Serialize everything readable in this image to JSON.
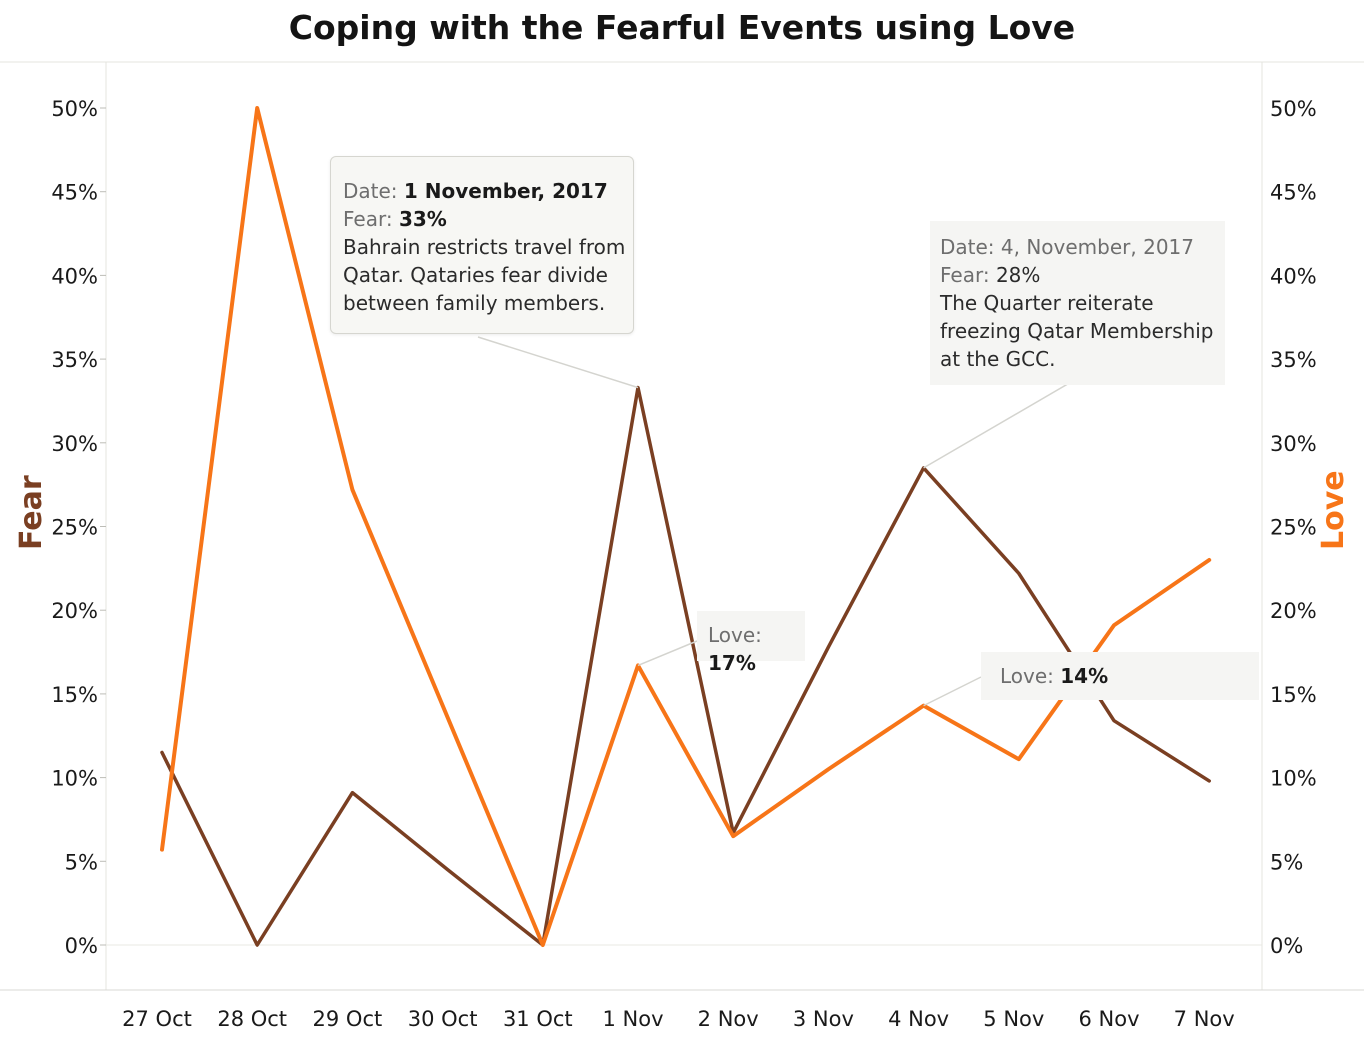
{
  "title": "Coping with the Fearful Events using Love",
  "colors": {
    "fear": "#7a3f22",
    "love": "#f77518",
    "grid": "#d9d9d4",
    "text": "#1a1a1a"
  },
  "chart_data": {
    "type": "line",
    "title": "Coping with the Fearful Events using Love",
    "categories": [
      "27 Oct",
      "28 Oct",
      "29 Oct",
      "30 Oct",
      "31 Oct",
      "1 Nov",
      "2 Nov",
      "3 Nov",
      "4 Nov",
      "5 Nov",
      "6 Nov",
      "7 Nov"
    ],
    "y_left_label": "Fear",
    "y_right_label": "Love",
    "ylim": [
      0,
      50
    ],
    "y_ticks": [
      "0%",
      "5%",
      "10%",
      "15%",
      "20%",
      "25%",
      "30%",
      "35%",
      "40%",
      "45%",
      "50%"
    ],
    "series": [
      {
        "name": "Fear",
        "axis": "left",
        "values": [
          11.5,
          0,
          9.1,
          4.5,
          0,
          33.3,
          6.7,
          17.8,
          28.5,
          22.2,
          13.4,
          9.8
        ]
      },
      {
        "name": "Love",
        "axis": "right",
        "values": [
          5.7,
          50,
          27.2,
          13.6,
          0,
          16.7,
          6.5,
          10.5,
          14.3,
          11.1,
          19.1,
          23.0
        ]
      }
    ],
    "annotations": [
      {
        "date_label": "Date:",
        "date": "1 November, 2017",
        "fear_label": "Fear:",
        "fear": "33%",
        "text_lines": [
          "Bahrain restricts travel from",
          "Qatar. Qataries fear divide",
          "between family members."
        ]
      },
      {
        "date_label": "Date:",
        "date": "4, November, 2017",
        "fear_label": "Fear:",
        "fear": "28%",
        "text_lines": [
          "The Quarter reiterate",
          "freezing Qatar Membership",
          "at the GCC."
        ]
      },
      {
        "love_label": "Love:",
        "love": "17%"
      },
      {
        "love_label": "Love:",
        "love": "14%"
      }
    ]
  }
}
